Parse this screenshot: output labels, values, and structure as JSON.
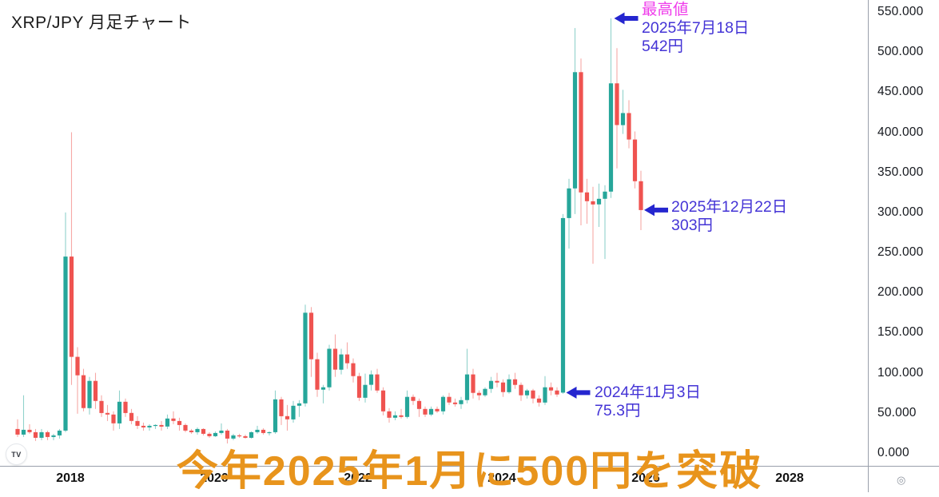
{
  "header": {
    "title": "XRP/JPY 月足チャート"
  },
  "colors": {
    "up": "#26a69a",
    "down": "#ef5350",
    "annotation_blue": "#4434d6",
    "annotation_arrow": "#2526cf",
    "annotation_magenta": "#ef3deb",
    "banner_orange": "#e8941c",
    "axis_line": "#9aa0ab"
  },
  "price_axis": {
    "labels": [
      "550.000",
      "500.000",
      "450.000",
      "400.000",
      "350.000",
      "300.000",
      "250.000",
      "200.000",
      "150.000",
      "100.000",
      "50.000",
      "0.000"
    ],
    "values": [
      550,
      500,
      450,
      400,
      350,
      300,
      250,
      200,
      150,
      100,
      50,
      0
    ]
  },
  "annotations": {
    "high": {
      "label": "最高値",
      "date": "2025年7月18日",
      "price": "542円"
    },
    "latest": {
      "date": "2025年12月22日",
      "price": "303円"
    },
    "low2024": {
      "date": "2024年11月3日",
      "price": "75.3円"
    }
  },
  "banner": {
    "text": "今年2025年1月に500円を突破"
  },
  "logo": {
    "text": "TV"
  },
  "misc": {
    "target_icon": "◎"
  },
  "chart_data": {
    "type": "candlestick",
    "symbol": "XRP/JPY",
    "timeframe": "monthly",
    "title": "XRP/JPY 月足チャート",
    "ylabel": "JPY",
    "y_axis_range": [
      0,
      550
    ],
    "y_tick_step": 50,
    "grid": false,
    "x_ticks_years": [
      2018,
      2020,
      2022,
      2024,
      2026,
      2028
    ],
    "highlights": {
      "all_time_high": {
        "month": "2025-07",
        "price_yen": 542,
        "date_label": "2025年7月18日"
      },
      "recent": {
        "month": "2025-12",
        "price_yen": 303,
        "date_label": "2025年12月22日"
      },
      "breakout_start": {
        "month": "2024-11",
        "price_yen": 75.3,
        "date_label": "2024年11月3日"
      }
    },
    "candles_format": [
      "month",
      "open",
      "high",
      "low",
      "close"
    ],
    "candles": [
      [
        "2017-04",
        30,
        42,
        20,
        23
      ],
      [
        "2017-05",
        23,
        72,
        20,
        29
      ],
      [
        "2017-06",
        29,
        36,
        24,
        26
      ],
      [
        "2017-07",
        26,
        30,
        15,
        19
      ],
      [
        "2017-08",
        19,
        30,
        16,
        26
      ],
      [
        "2017-09",
        26,
        28,
        16,
        20
      ],
      [
        "2017-10",
        20,
        24,
        16,
        22
      ],
      [
        "2017-11",
        22,
        30,
        18,
        28
      ],
      [
        "2017-12",
        28,
        300,
        26,
        245
      ],
      [
        "2018-01",
        245,
        400,
        85,
        120
      ],
      [
        "2018-02",
        120,
        132,
        49,
        97
      ],
      [
        "2018-03",
        97,
        105,
        52,
        56
      ],
      [
        "2018-04",
        56,
        95,
        48,
        90
      ],
      [
        "2018-05",
        90,
        100,
        55,
        65
      ],
      [
        "2018-06",
        65,
        72,
        45,
        50
      ],
      [
        "2018-07",
        50,
        60,
        40,
        48
      ],
      [
        "2018-08",
        48,
        52,
        28,
        37
      ],
      [
        "2018-09",
        37,
        78,
        30,
        64
      ],
      [
        "2018-10",
        64,
        68,
        45,
        50
      ],
      [
        "2018-11",
        50,
        55,
        36,
        40
      ],
      [
        "2018-12",
        40,
        46,
        30,
        34
      ],
      [
        "2019-01",
        34,
        38,
        28,
        32
      ],
      [
        "2019-02",
        32,
        36,
        28,
        34
      ],
      [
        "2019-03",
        34,
        36,
        30,
        35
      ],
      [
        "2019-04",
        35,
        40,
        28,
        33
      ],
      [
        "2019-05",
        33,
        48,
        30,
        43
      ],
      [
        "2019-06",
        43,
        52,
        36,
        40
      ],
      [
        "2019-07",
        40,
        44,
        28,
        35
      ],
      [
        "2019-08",
        35,
        37,
        26,
        28
      ],
      [
        "2019-09",
        28,
        30,
        24,
        26
      ],
      [
        "2019-10",
        26,
        32,
        23,
        30
      ],
      [
        "2019-11",
        30,
        31,
        22,
        24
      ],
      [
        "2019-12",
        24,
        26,
        19,
        21
      ],
      [
        "2020-01",
        21,
        27,
        20,
        25
      ],
      [
        "2020-02",
        25,
        37,
        23,
        28
      ],
      [
        "2020-03",
        28,
        30,
        12,
        18
      ],
      [
        "2020-04",
        18,
        24,
        16,
        22
      ],
      [
        "2020-05",
        22,
        24,
        19,
        21
      ],
      [
        "2020-06",
        21,
        23,
        18,
        19
      ],
      [
        "2020-07",
        19,
        27,
        18,
        26
      ],
      [
        "2020-08",
        26,
        34,
        24,
        29
      ],
      [
        "2020-09",
        29,
        31,
        23,
        25
      ],
      [
        "2020-10",
        25,
        27,
        22,
        26
      ],
      [
        "2020-11",
        26,
        78,
        24,
        67
      ],
      [
        "2020-12",
        67,
        70,
        35,
        46
      ],
      [
        "2021-01",
        46,
        60,
        28,
        42
      ],
      [
        "2021-02",
        42,
        65,
        38,
        59
      ],
      [
        "2021-03",
        59,
        66,
        45,
        62
      ],
      [
        "2021-04",
        62,
        185,
        58,
        175
      ],
      [
        "2021-05",
        175,
        182,
        95,
        117
      ],
      [
        "2021-06",
        117,
        125,
        70,
        79
      ],
      [
        "2021-07",
        79,
        85,
        62,
        82
      ],
      [
        "2021-08",
        82,
        135,
        78,
        130
      ],
      [
        "2021-09",
        130,
        148,
        95,
        104
      ],
      [
        "2021-10",
        104,
        130,
        98,
        123
      ],
      [
        "2021-11",
        123,
        138,
        105,
        112
      ],
      [
        "2021-12",
        112,
        118,
        88,
        96
      ],
      [
        "2022-01",
        96,
        100,
        65,
        69
      ],
      [
        "2022-02",
        69,
        99,
        63,
        85
      ],
      [
        "2022-03",
        85,
        103,
        78,
        98
      ],
      [
        "2022-04",
        98,
        105,
        75,
        78
      ],
      [
        "2022-05",
        78,
        82,
        47,
        52
      ],
      [
        "2022-06",
        52,
        56,
        38,
        44
      ],
      [
        "2022-07",
        44,
        52,
        41,
        47
      ],
      [
        "2022-08",
        47,
        55,
        43,
        45
      ],
      [
        "2022-09",
        45,
        78,
        43,
        70
      ],
      [
        "2022-10",
        70,
        73,
        60,
        65
      ],
      [
        "2022-11",
        65,
        68,
        45,
        55
      ],
      [
        "2022-12",
        55,
        58,
        45,
        48
      ],
      [
        "2023-01",
        48,
        58,
        46,
        55
      ],
      [
        "2023-02",
        55,
        58,
        50,
        52
      ],
      [
        "2023-03",
        52,
        72,
        48,
        70
      ],
      [
        "2023-04",
        70,
        75,
        60,
        63
      ],
      [
        "2023-05",
        63,
        68,
        58,
        61
      ],
      [
        "2023-06",
        61,
        70,
        55,
        66
      ],
      [
        "2023-07",
        66,
        130,
        62,
        98
      ],
      [
        "2023-08",
        98,
        105,
        68,
        75
      ],
      [
        "2023-09",
        75,
        78,
        66,
        72
      ],
      [
        "2023-10",
        72,
        82,
        70,
        80
      ],
      [
        "2023-11",
        80,
        95,
        75,
        90
      ],
      [
        "2023-12",
        90,
        100,
        82,
        88
      ],
      [
        "2024-01",
        88,
        92,
        70,
        76
      ],
      [
        "2024-02",
        76,
        98,
        74,
        92
      ],
      [
        "2024-03",
        92,
        100,
        80,
        85
      ],
      [
        "2024-04",
        85,
        88,
        65,
        72
      ],
      [
        "2024-05",
        72,
        80,
        68,
        78
      ],
      [
        "2024-06",
        78,
        80,
        62,
        68
      ],
      [
        "2024-07",
        68,
        72,
        58,
        63
      ],
      [
        "2024-08",
        63,
        96,
        60,
        82
      ],
      [
        "2024-09",
        82,
        88,
        72,
        78
      ],
      [
        "2024-10",
        78,
        82,
        70,
        73
      ],
      [
        "2024-11",
        75.3,
        298,
        74,
        293
      ],
      [
        "2024-12",
        293,
        342,
        255,
        330
      ],
      [
        "2025-01",
        330,
        530,
        298,
        475
      ],
      [
        "2025-02",
        475,
        492,
        284,
        325
      ],
      [
        "2025-03",
        325,
        342,
        286,
        314
      ],
      [
        "2025-04",
        314,
        332,
        236,
        310
      ],
      [
        "2025-05",
        310,
        336,
        282,
        317
      ],
      [
        "2025-06",
        317,
        334,
        242,
        326
      ],
      [
        "2025-07",
        326,
        542,
        318,
        461
      ],
      [
        "2025-08",
        461,
        505,
        355,
        409
      ],
      [
        "2025-09",
        409,
        453,
        398,
        424
      ],
      [
        "2025-10",
        424,
        440,
        380,
        391
      ],
      [
        "2025-11",
        391,
        401,
        330,
        339
      ],
      [
        "2025-12",
        339,
        352,
        278,
        303
      ]
    ]
  }
}
